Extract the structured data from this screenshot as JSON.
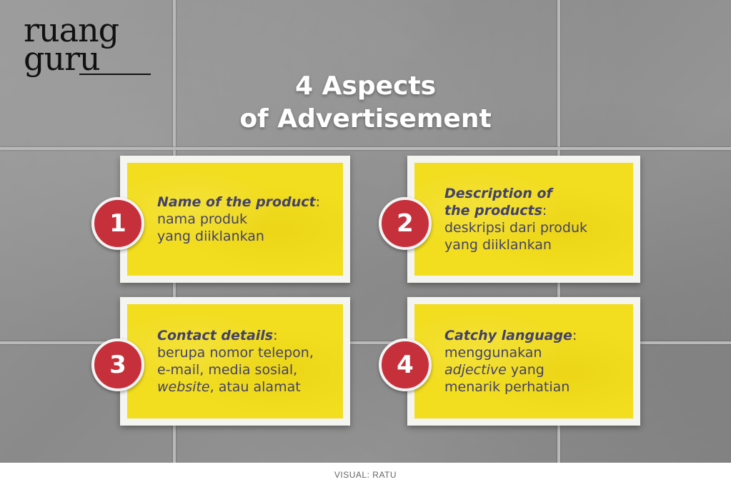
{
  "brand": {
    "logo_line1": "ruang",
    "logo_line2": "guru"
  },
  "title": {
    "line1": "4 Aspects",
    "line2": "of Advertisement"
  },
  "cards": [
    {
      "number": "1",
      "heading": "Name of the product",
      "lines": [
        "nama produk",
        "yang diiklankan"
      ]
    },
    {
      "number": "2",
      "heading_line1": "Description of",
      "heading_line2": "the products",
      "lines": [
        "deskripsi dari produk",
        "yang diiklankan"
      ]
    },
    {
      "number": "3",
      "heading": "Contact details",
      "lines": [
        "berupa nomor telepon,",
        "e-mail, media sosial,"
      ],
      "last_italic": "website",
      "last_rest": ", atau alamat"
    },
    {
      "number": "4",
      "heading": "Catchy language",
      "line1": "menggunakan",
      "italic": "adjective",
      "line2_rest": " yang",
      "line3": "menarik perhatian"
    }
  ],
  "footer": {
    "credit": "VISUAL: RATU"
  },
  "colors": {
    "card_fill": "#f2dd1f",
    "card_text": "#43426a",
    "badge": "#c6303a",
    "title": "#ffffff",
    "wall": "#8e8e8e"
  }
}
